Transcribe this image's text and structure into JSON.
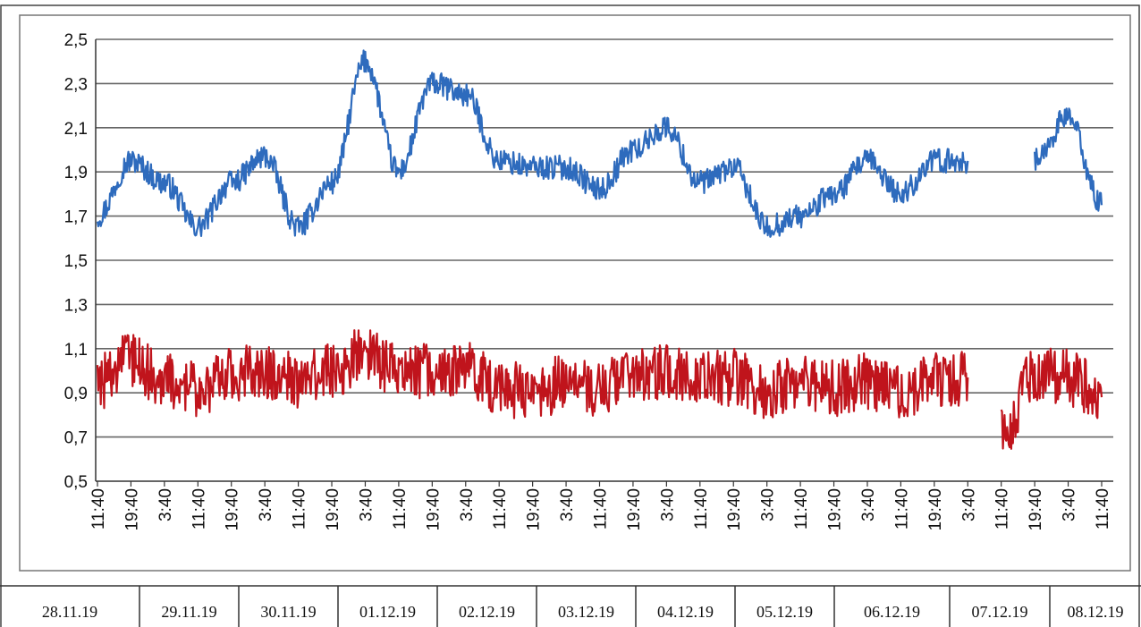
{
  "chart_data": {
    "type": "line",
    "title": "",
    "xlabel": "",
    "ylabel": "",
    "ylim": [
      0.5,
      2.5
    ],
    "y_ticks": [
      "0,5",
      "0,7",
      "0,9",
      "1,1",
      "1,3",
      "1,5",
      "1,7",
      "1,9",
      "2,1",
      "2,3",
      "2,5"
    ],
    "x_ticks": [
      "11:40",
      "19:40",
      "3:40",
      "11:40",
      "19:40",
      "3:40",
      "11:40",
      "19:40",
      "3:40",
      "11:40",
      "19:40",
      "3:40",
      "11:40",
      "19:40",
      "3:40",
      "11:40",
      "19:40",
      "3:40",
      "11:40",
      "19:40",
      "3:40",
      "11:40",
      "19:40",
      "3:40",
      "11:40",
      "19:40",
      "3:40",
      "11:40",
      "19:40",
      "3:40",
      "11:40"
    ],
    "dates": [
      "28.11.19",
      "29.11.19",
      "30.11.19",
      "01.12.19",
      "02.12.19",
      "03.12.19",
      "04.12.19",
      "05.12.19",
      "06.12.19",
      "07.12.19",
      "08.12.19"
    ],
    "grid": true,
    "legend": "none",
    "series": [
      {
        "color": "#2e6bbd",
        "x": [
          "28.11.19 11:40",
          "28.11.19 19:40",
          "29.11.19 03:40",
          "29.11.19 11:40",
          "29.11.19 19:40",
          "30.11.19 03:40",
          "30.11.19 11:40",
          "30.11.19 19:40",
          "01.12.19 03:40",
          "01.12.19 11:40",
          "01.12.19 19:40",
          "02.12.19 03:40",
          "02.12.19 11:40",
          "02.12.19 19:40",
          "03.12.19 03:40",
          "03.12.19 11:40",
          "03.12.19 19:40",
          "04.12.19 03:40",
          "04.12.19 11:40",
          "04.12.19 19:40",
          "05.12.19 03:40",
          "05.12.19 11:40",
          "05.12.19 19:40",
          "06.12.19 03:40",
          "06.12.19 11:40",
          "06.12.19 19:40",
          "07.12.19 03:40",
          "07.12.19 11:40",
          "07.12.19 19:40",
          "08.12.19 03:40",
          "08.12.19 11:40"
        ],
        "values": [
          1.7,
          1.95,
          1.85,
          1.65,
          1.85,
          1.97,
          1.65,
          1.85,
          2.4,
          1.9,
          2.3,
          2.25,
          1.95,
          1.92,
          1.92,
          1.82,
          2.0,
          2.1,
          1.85,
          1.92,
          1.65,
          1.7,
          1.8,
          1.95,
          1.8,
          1.95,
          1.95,
          null,
          1.95,
          2.15,
          1.75
        ],
        "line_gaps": [
          [
            26,
            27
          ],
          [
            27,
            28
          ]
        ]
      },
      {
        "color": "#c0141c",
        "x": [
          "28.11.19 11:40",
          "28.11.19 19:40",
          "29.11.19 03:40",
          "29.11.19 11:40",
          "29.11.19 19:40",
          "30.11.19 03:40",
          "30.11.19 11:40",
          "30.11.19 19:40",
          "01.12.19 03:40",
          "01.12.19 11:40",
          "01.12.19 19:40",
          "02.12.19 03:40",
          "02.12.19 11:40",
          "02.12.19 19:40",
          "03.12.19 03:40",
          "03.12.19 11:40",
          "03.12.19 19:40",
          "04.12.19 03:40",
          "04.12.19 11:40",
          "04.12.19 19:40",
          "05.12.19 03:40",
          "05.12.19 11:40",
          "05.12.19 19:40",
          "06.12.19 03:40",
          "06.12.19 11:40",
          "06.12.19 19:40",
          "07.12.19 03:40",
          "07.12.19 11:40",
          "07.12.19 19:40",
          "08.12.19 03:40",
          "08.12.19 11:40"
        ],
        "values": [
          0.95,
          1.05,
          0.95,
          0.92,
          0.98,
          1.0,
          0.95,
          1.0,
          1.08,
          1.0,
          1.0,
          1.0,
          0.92,
          0.9,
          0.95,
          0.92,
          0.98,
          1.0,
          0.97,
          0.97,
          0.9,
          0.95,
          0.92,
          0.95,
          0.9,
          0.97,
          0.97,
          0.7,
          0.98,
          0.97,
          0.88
        ],
        "line_gaps": [
          [
            26,
            27
          ]
        ]
      }
    ]
  }
}
